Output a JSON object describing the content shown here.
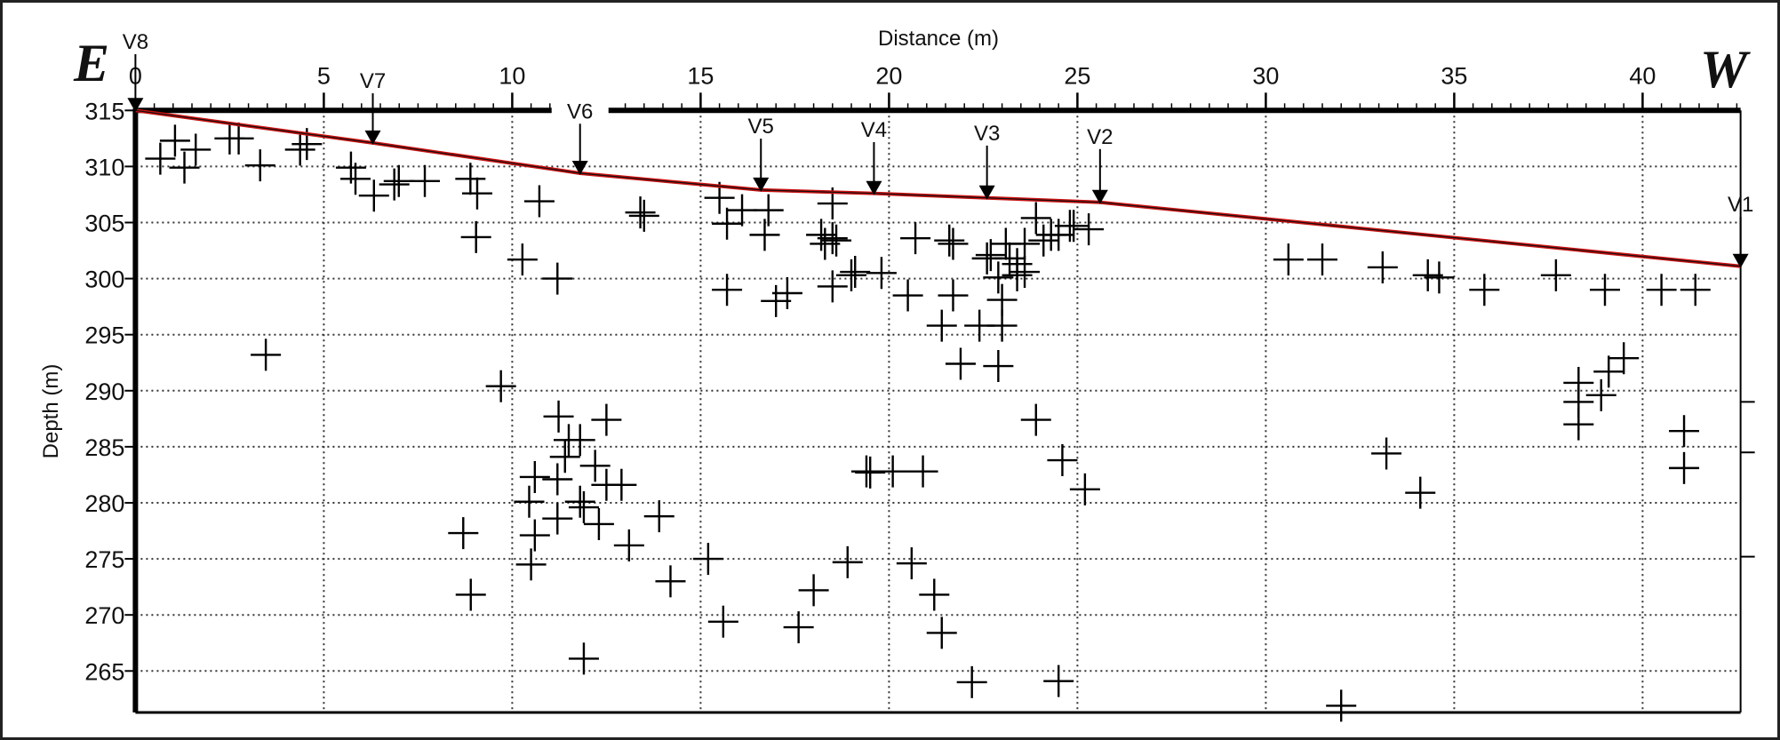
{
  "chart_data": {
    "type": "scatter",
    "title": "",
    "xlabel": "Distance (m)",
    "ylabel": "Depth (m)",
    "xlim": [
      0,
      42.6
    ],
    "ylim": [
      261.3,
      315
    ],
    "xticks": [
      0,
      5,
      10,
      15,
      20,
      25,
      30,
      35,
      40
    ],
    "yticks": [
      265,
      270,
      275,
      280,
      285,
      290,
      295,
      300,
      305,
      310,
      315
    ],
    "x_axis_position": "top",
    "grid": true,
    "grid_style": "dotted",
    "direction_labels": {
      "left": "E",
      "right": "W"
    },
    "marker": "plus",
    "line_color": "#cc1111",
    "surface_profile": {
      "x": [
        0,
        6.3,
        11.8,
        16.6,
        19.6,
        22.6,
        25.6,
        42.6
      ],
      "y": [
        315,
        312.1,
        309.4,
        307.9,
        307.6,
        307.2,
        306.8,
        301.1
      ]
    },
    "stations": [
      {
        "label": "V8",
        "x": 0,
        "y": 315
      },
      {
        "label": "V7",
        "x": 6.3,
        "y": 312.1
      },
      {
        "label": "V6",
        "x": 11.8,
        "y": 309.4
      },
      {
        "label": "V5",
        "x": 16.6,
        "y": 307.9
      },
      {
        "label": "V4",
        "x": 19.6,
        "y": 307.6
      },
      {
        "label": "V3",
        "x": 22.6,
        "y": 307.2
      },
      {
        "label": "V2",
        "x": 25.6,
        "y": 306.8
      },
      {
        "label": "V1",
        "x": 42.6,
        "y": 301.1
      }
    ],
    "points": [
      [
        0.66,
        310.7
      ],
      [
        1.05,
        312.3
      ],
      [
        1.3,
        309.9
      ],
      [
        1.6,
        311.5
      ],
      [
        2.5,
        312.5
      ],
      [
        2.74,
        312.5
      ],
      [
        3.31,
        310.1
      ],
      [
        4.37,
        311.5
      ],
      [
        4.55,
        312.0
      ],
      [
        5.72,
        309.9
      ],
      [
        5.84,
        308.9
      ],
      [
        6.33,
        307.4
      ],
      [
        6.87,
        308.4
      ],
      [
        6.99,
        308.7
      ],
      [
        7.68,
        308.7
      ],
      [
        8.89,
        308.9
      ],
      [
        9.07,
        307.6
      ],
      [
        9.04,
        303.7
      ],
      [
        10.72,
        306.9
      ],
      [
        10.27,
        301.7
      ],
      [
        11.2,
        300.0
      ],
      [
        3.46,
        293.2
      ],
      [
        9.7,
        290.4
      ],
      [
        11.23,
        287.7
      ],
      [
        12.5,
        287.4
      ],
      [
        11.5,
        285.6
      ],
      [
        11.8,
        285.6
      ],
      [
        11.4,
        284.1
      ],
      [
        12.2,
        283.3
      ],
      [
        10.6,
        282.3
      ],
      [
        11.2,
        282.1
      ],
      [
        12.5,
        281.6
      ],
      [
        12.9,
        281.6
      ],
      [
        10.45,
        280.1
      ],
      [
        11.8,
        280.1
      ],
      [
        11.9,
        279.6
      ],
      [
        11.2,
        278.6
      ],
      [
        12.3,
        278.1
      ],
      [
        10.6,
        277.1
      ],
      [
        10.5,
        274.5
      ],
      [
        8.7,
        277.3
      ],
      [
        8.9,
        271.8
      ],
      [
        13.1,
        276.2
      ],
      [
        13.9,
        278.8
      ],
      [
        14.2,
        273.0
      ],
      [
        11.9,
        266.1
      ],
      [
        15.2,
        275.0
      ],
      [
        15.6,
        269.4
      ],
      [
        17.6,
        268.9
      ],
      [
        18.0,
        272.2
      ],
      [
        18.9,
        274.7
      ],
      [
        20.6,
        274.6
      ],
      [
        21.2,
        271.8
      ],
      [
        21.4,
        268.4
      ],
      [
        22.2,
        264.0
      ],
      [
        24.5,
        264.1
      ],
      [
        25.2,
        281.2
      ],
      [
        23.9,
        287.4
      ],
      [
        24.6,
        283.8
      ],
      [
        19.4,
        282.8
      ],
      [
        19.5,
        282.7
      ],
      [
        20.1,
        282.8
      ],
      [
        20.9,
        282.8
      ],
      [
        15.5,
        307.2
      ],
      [
        15.7,
        304.9
      ],
      [
        16.1,
        306.1
      ],
      [
        16.8,
        306.1
      ],
      [
        16.7,
        303.9
      ],
      [
        13.4,
        305.9
      ],
      [
        13.5,
        305.6
      ],
      [
        15.7,
        299.0
      ],
      [
        17.0,
        298.0
      ],
      [
        17.3,
        298.7
      ],
      [
        18.5,
        306.7
      ],
      [
        18.2,
        303.9
      ],
      [
        18.3,
        303.1
      ],
      [
        18.5,
        303.6
      ],
      [
        18.6,
        303.4
      ],
      [
        18.5,
        299.3
      ],
      [
        19.0,
        300.3
      ],
      [
        19.1,
        300.6
      ],
      [
        19.8,
        300.5
      ],
      [
        20.5,
        298.5
      ],
      [
        20.7,
        303.6
      ],
      [
        21.6,
        303.4
      ],
      [
        21.7,
        303.1
      ],
      [
        21.7,
        298.5
      ],
      [
        21.4,
        295.8
      ],
      [
        21.9,
        292.4
      ],
      [
        22.6,
        301.8
      ],
      [
        22.7,
        302.1
      ],
      [
        22.4,
        295.8
      ],
      [
        23.0,
        295.8
      ],
      [
        22.9,
        292.2
      ],
      [
        23.0,
        298.1
      ],
      [
        22.9,
        300.1
      ],
      [
        23.1,
        303.1
      ],
      [
        23.2,
        301.8
      ],
      [
        23.4,
        301.3
      ],
      [
        23.4,
        300.3
      ],
      [
        23.6,
        300.6
      ],
      [
        23.6,
        303.1
      ],
      [
        23.9,
        305.4
      ],
      [
        24.1,
        303.4
      ],
      [
        24.3,
        303.9
      ],
      [
        24.5,
        303.9
      ],
      [
        24.8,
        304.7
      ],
      [
        24.9,
        304.7
      ],
      [
        25.3,
        304.4
      ],
      [
        30.6,
        301.7
      ],
      [
        31.5,
        301.7
      ],
      [
        33.1,
        301.0
      ],
      [
        34.3,
        300.3
      ],
      [
        34.6,
        300.1
      ],
      [
        35.8,
        299.0
      ],
      [
        37.7,
        300.3
      ],
      [
        39.0,
        299.0
      ],
      [
        40.5,
        299.0
      ],
      [
        41.4,
        299.0
      ],
      [
        39.5,
        292.9
      ],
      [
        39.1,
        291.7
      ],
      [
        38.3,
        290.7
      ],
      [
        38.3,
        289.0
      ],
      [
        38.3,
        287.0
      ],
      [
        38.9,
        289.6
      ],
      [
        33.2,
        284.4
      ],
      [
        34.1,
        280.9
      ],
      [
        41.1,
        286.4
      ],
      [
        41.1,
        283.1
      ],
      [
        32.0,
        261.9
      ]
    ]
  }
}
